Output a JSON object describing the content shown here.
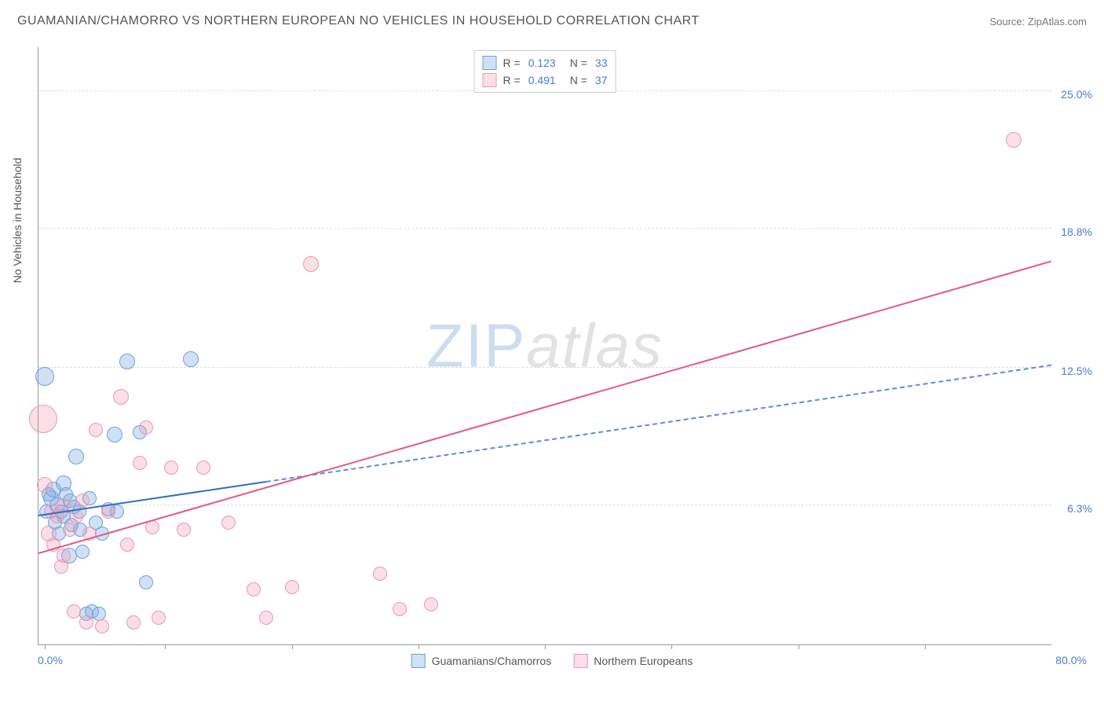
{
  "title": "GUAMANIAN/CHAMORRO VS NORTHERN EUROPEAN NO VEHICLES IN HOUSEHOLD CORRELATION CHART",
  "source": "Source: ZipAtlas.com",
  "yaxis_label": "No Vehicles in Household",
  "watermark_a": "ZIP",
  "watermark_b": "atlas",
  "chart": {
    "type": "scatter",
    "xlim": [
      0,
      80
    ],
    "ylim": [
      0,
      27
    ],
    "x_min_label": "0.0%",
    "x_max_label": "80.0%",
    "y_ticks": [
      {
        "value": 6.3,
        "label": "6.3%"
      },
      {
        "value": 12.5,
        "label": "12.5%"
      },
      {
        "value": 18.8,
        "label": "18.8%"
      },
      {
        "value": 25.0,
        "label": "25.0%"
      }
    ],
    "x_tick_values": [
      0.5,
      10,
      20,
      30,
      40,
      50,
      60,
      70
    ],
    "background_color": "#ffffff",
    "grid_color": "#dddddd",
    "axis_color": "#999999",
    "title_color": "#555555",
    "tick_label_color": "#4a7ec9",
    "series": [
      {
        "key": "guamanian",
        "label": "Guamanians/Chamorros",
        "fill": "rgba(120,170,226,0.35)",
        "stroke": "#6da0dd",
        "r_value": "0.123",
        "n_value": "33",
        "trend": {
          "x1": 0,
          "y1": 5.8,
          "x2": 80,
          "y2": 12.6,
          "solid_to_x": 18,
          "stroke": "#2f6fbf",
          "dash_stroke": "#5b8fd1",
          "width": 2
        },
        "points": [
          {
            "x": 0.5,
            "y": 12.1,
            "r": 12
          },
          {
            "x": 1.0,
            "y": 6.6,
            "r": 10
          },
          {
            "x": 1.2,
            "y": 7.0,
            "r": 10
          },
          {
            "x": 1.5,
            "y": 6.3,
            "r": 10
          },
          {
            "x": 1.8,
            "y": 6.0,
            "r": 9
          },
          {
            "x": 2.0,
            "y": 7.3,
            "r": 10
          },
          {
            "x": 2.0,
            "y": 5.8,
            "r": 9
          },
          {
            "x": 2.4,
            "y": 4.0,
            "r": 10
          },
          {
            "x": 2.5,
            "y": 6.5,
            "r": 9
          },
          {
            "x": 2.8,
            "y": 6.2,
            "r": 9
          },
          {
            "x": 3.0,
            "y": 8.5,
            "r": 10
          },
          {
            "x": 3.2,
            "y": 6.0,
            "r": 9
          },
          {
            "x": 3.5,
            "y": 4.2,
            "r": 9
          },
          {
            "x": 3.8,
            "y": 1.4,
            "r": 9
          },
          {
            "x": 4.0,
            "y": 6.6,
            "r": 9
          },
          {
            "x": 4.2,
            "y": 1.5,
            "r": 9
          },
          {
            "x": 4.5,
            "y": 5.5,
            "r": 9
          },
          {
            "x": 4.8,
            "y": 1.4,
            "r": 9
          },
          {
            "x": 5.5,
            "y": 6.1,
            "r": 9
          },
          {
            "x": 6.0,
            "y": 9.5,
            "r": 10
          },
          {
            "x": 6.2,
            "y": 6.0,
            "r": 9
          },
          {
            "x": 7.0,
            "y": 12.8,
            "r": 10
          },
          {
            "x": 8.0,
            "y": 9.6,
            "r": 9
          },
          {
            "x": 8.5,
            "y": 2.8,
            "r": 9
          },
          {
            "x": 12.0,
            "y": 12.9,
            "r": 10
          },
          {
            "x": 0.8,
            "y": 6.8,
            "r": 9
          },
          {
            "x": 1.3,
            "y": 5.5,
            "r": 9
          },
          {
            "x": 2.2,
            "y": 6.8,
            "r": 9
          },
          {
            "x": 3.3,
            "y": 5.2,
            "r": 9
          },
          {
            "x": 5.0,
            "y": 5.0,
            "r": 9
          },
          {
            "x": 0.6,
            "y": 6.0,
            "r": 9
          },
          {
            "x": 1.6,
            "y": 5.0,
            "r": 9
          },
          {
            "x": 2.6,
            "y": 5.4,
            "r": 9
          }
        ]
      },
      {
        "key": "northern_european",
        "label": "Northern Europeans",
        "fill": "rgba(238,150,175,0.30)",
        "stroke": "#e89ab0",
        "r_value": "0.491",
        "n_value": "37",
        "trend": {
          "x1": 0,
          "y1": 4.1,
          "x2": 80,
          "y2": 17.3,
          "solid_to_x": 80,
          "stroke": "#e05a85",
          "width": 2
        },
        "points": [
          {
            "x": 0.4,
            "y": 10.2,
            "r": 18
          },
          {
            "x": 0.5,
            "y": 7.2,
            "r": 10
          },
          {
            "x": 0.8,
            "y": 5.0,
            "r": 10
          },
          {
            "x": 1.0,
            "y": 6.0,
            "r": 9
          },
          {
            "x": 1.2,
            "y": 4.5,
            "r": 9
          },
          {
            "x": 1.5,
            "y": 5.8,
            "r": 9
          },
          {
            "x": 1.8,
            "y": 3.5,
            "r": 9
          },
          {
            "x": 2.0,
            "y": 6.3,
            "r": 9
          },
          {
            "x": 2.0,
            "y": 4.0,
            "r": 9
          },
          {
            "x": 2.5,
            "y": 5.2,
            "r": 9
          },
          {
            "x": 2.8,
            "y": 1.5,
            "r": 9
          },
          {
            "x": 3.0,
            "y": 5.8,
            "r": 9
          },
          {
            "x": 3.5,
            "y": 6.5,
            "r": 9
          },
          {
            "x": 3.8,
            "y": 1.0,
            "r": 9
          },
          {
            "x": 4.0,
            "y": 5.0,
            "r": 9
          },
          {
            "x": 4.5,
            "y": 9.7,
            "r": 9
          },
          {
            "x": 5.0,
            "y": 0.8,
            "r": 9
          },
          {
            "x": 5.5,
            "y": 6.0,
            "r": 9
          },
          {
            "x": 6.5,
            "y": 11.2,
            "r": 10
          },
          {
            "x": 7.0,
            "y": 4.5,
            "r": 9
          },
          {
            "x": 7.5,
            "y": 1.0,
            "r": 9
          },
          {
            "x": 8.0,
            "y": 8.2,
            "r": 9
          },
          {
            "x": 8.5,
            "y": 9.8,
            "r": 9
          },
          {
            "x": 9.0,
            "y": 5.3,
            "r": 9
          },
          {
            "x": 9.5,
            "y": 1.2,
            "r": 9
          },
          {
            "x": 10.5,
            "y": 8.0,
            "r": 9
          },
          {
            "x": 11.5,
            "y": 5.2,
            "r": 9
          },
          {
            "x": 13.0,
            "y": 8.0,
            "r": 9
          },
          {
            "x": 15.0,
            "y": 5.5,
            "r": 9
          },
          {
            "x": 17.0,
            "y": 2.5,
            "r": 9
          },
          {
            "x": 18.0,
            "y": 1.2,
            "r": 9
          },
          {
            "x": 20.0,
            "y": 2.6,
            "r": 9
          },
          {
            "x": 21.5,
            "y": 17.2,
            "r": 10
          },
          {
            "x": 27.0,
            "y": 3.2,
            "r": 9
          },
          {
            "x": 28.5,
            "y": 1.6,
            "r": 9
          },
          {
            "x": 31.0,
            "y": 1.8,
            "r": 9
          },
          {
            "x": 77.0,
            "y": 22.8,
            "r": 10
          }
        ]
      }
    ]
  },
  "stats_label_r": "R  =",
  "stats_label_n": "N  ="
}
